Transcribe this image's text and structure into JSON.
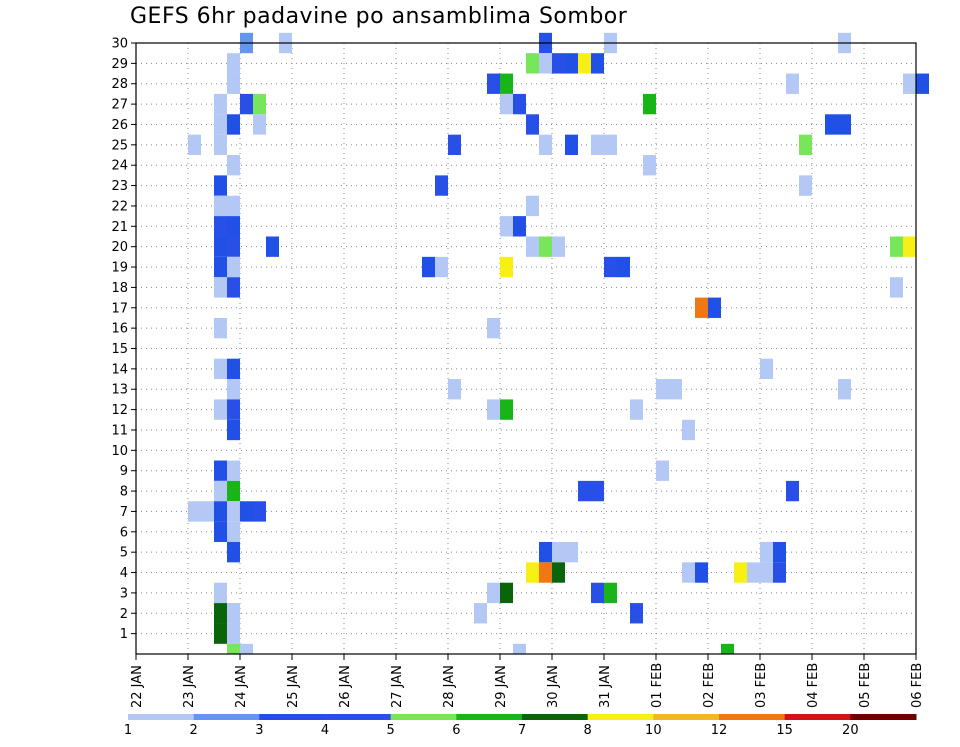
{
  "chart_data": {
    "type": "heatmap",
    "title": "GEFS 6hr padavine po ansamblima Sombor",
    "x_ticks": [
      "22 JAN",
      "23 JAN",
      "24 JAN",
      "25 JAN",
      "26 JAN",
      "27 JAN",
      "28 JAN",
      "29 JAN",
      "30 JAN",
      "31 JAN",
      "01 FEB",
      "02 FEB",
      "03 FEB",
      "04 FEB",
      "05 FEB",
      "06 FEB"
    ],
    "y_ticks": [
      1,
      2,
      3,
      4,
      5,
      6,
      7,
      8,
      9,
      10,
      11,
      12,
      13,
      14,
      15,
      16,
      17,
      18,
      19,
      20,
      21,
      22,
      23,
      24,
      25,
      26,
      27,
      28,
      29,
      30
    ],
    "x_range_days": [
      0,
      15
    ],
    "y_range": [
      0,
      30
    ],
    "grid": "dotted",
    "cell_width_days": 0.25,
    "legend": {
      "position": "bottom",
      "labels": [
        "1",
        "2",
        "3",
        "4",
        "5",
        "6",
        "7",
        "8",
        "10",
        "12",
        "15",
        "20"
      ],
      "colors": [
        "#b4c8f6",
        "#6496f0",
        "#2050e6",
        "#2850e6",
        "#78e65a",
        "#18b418",
        "#0a640a",
        "#f8f014",
        "#f8b428",
        "#f07814",
        "#d21414",
        "#6e0000"
      ]
    },
    "cells": [
      {
        "x": 2.0,
        "y": 30,
        "v": 2
      },
      {
        "x": 2.75,
        "y": 30,
        "v": 1
      },
      {
        "x": 7.75,
        "y": 30,
        "v": 4
      },
      {
        "x": 9.0,
        "y": 30,
        "v": 1
      },
      {
        "x": 13.5,
        "y": 30,
        "v": 1
      },
      {
        "x": 1.75,
        "y": 29,
        "v": 1
      },
      {
        "x": 7.5,
        "y": 29,
        "v": 5
      },
      {
        "x": 7.75,
        "y": 29,
        "v": 1
      },
      {
        "x": 8.0,
        "y": 29,
        "v": 4
      },
      {
        "x": 8.25,
        "y": 29,
        "v": 3
      },
      {
        "x": 8.5,
        "y": 29,
        "v": 8
      },
      {
        "x": 8.75,
        "y": 29,
        "v": 3
      },
      {
        "x": 1.75,
        "y": 28,
        "v": 1
      },
      {
        "x": 6.75,
        "y": 28,
        "v": 4
      },
      {
        "x": 7.0,
        "y": 28,
        "v": 6
      },
      {
        "x": 12.5,
        "y": 28,
        "v": 1
      },
      {
        "x": 14.75,
        "y": 28,
        "v": 1
      },
      {
        "x": 15.0,
        "y": 28,
        "v": 3
      },
      {
        "x": 1.5,
        "y": 27,
        "v": 1
      },
      {
        "x": 2.0,
        "y": 27,
        "v": 4
      },
      {
        "x": 2.25,
        "y": 27,
        "v": 5
      },
      {
        "x": 7.0,
        "y": 27,
        "v": 1
      },
      {
        "x": 7.25,
        "y": 27,
        "v": 4
      },
      {
        "x": 9.75,
        "y": 27,
        "v": 6
      },
      {
        "x": 1.5,
        "y": 26,
        "v": 1
      },
      {
        "x": 1.75,
        "y": 26,
        "v": 3
      },
      {
        "x": 2.25,
        "y": 26,
        "v": 1
      },
      {
        "x": 7.5,
        "y": 26,
        "v": 4
      },
      {
        "x": 13.25,
        "y": 26,
        "v": 3
      },
      {
        "x": 13.5,
        "y": 26,
        "v": 3
      },
      {
        "x": 1.0,
        "y": 25,
        "v": 1
      },
      {
        "x": 1.5,
        "y": 25,
        "v": 1
      },
      {
        "x": 6.0,
        "y": 25,
        "v": 4
      },
      {
        "x": 7.75,
        "y": 25,
        "v": 1
      },
      {
        "x": 8.25,
        "y": 25,
        "v": 3
      },
      {
        "x": 8.75,
        "y": 25,
        "v": 1
      },
      {
        "x": 9.0,
        "y": 25,
        "v": 1
      },
      {
        "x": 12.75,
        "y": 25,
        "v": 5
      },
      {
        "x": 1.75,
        "y": 24,
        "v": 1
      },
      {
        "x": 9.75,
        "y": 24,
        "v": 1
      },
      {
        "x": 1.5,
        "y": 23,
        "v": 3
      },
      {
        "x": 5.75,
        "y": 23,
        "v": 4
      },
      {
        "x": 12.75,
        "y": 23,
        "v": 1
      },
      {
        "x": 1.5,
        "y": 22,
        "v": 1
      },
      {
        "x": 1.75,
        "y": 22,
        "v": 1
      },
      {
        "x": 7.5,
        "y": 22,
        "v": 1
      },
      {
        "x": 1.5,
        "y": 21,
        "v": 4
      },
      {
        "x": 1.75,
        "y": 21,
        "v": 3
      },
      {
        "x": 7.0,
        "y": 21,
        "v": 1
      },
      {
        "x": 7.25,
        "y": 21,
        "v": 3
      },
      {
        "x": 1.5,
        "y": 20,
        "v": 3
      },
      {
        "x": 1.75,
        "y": 20,
        "v": 4
      },
      {
        "x": 2.5,
        "y": 20,
        "v": 3
      },
      {
        "x": 7.5,
        "y": 20,
        "v": 1
      },
      {
        "x": 7.75,
        "y": 20,
        "v": 5
      },
      {
        "x": 8.0,
        "y": 20,
        "v": 1
      },
      {
        "x": 14.5,
        "y": 20,
        "v": 5
      },
      {
        "x": 14.75,
        "y": 20,
        "v": 8
      },
      {
        "x": 1.5,
        "y": 19,
        "v": 3
      },
      {
        "x": 1.75,
        "y": 19,
        "v": 1
      },
      {
        "x": 5.5,
        "y": 19,
        "v": 3
      },
      {
        "x": 5.75,
        "y": 19,
        "v": 1
      },
      {
        "x": 7.0,
        "y": 19,
        "v": 8
      },
      {
        "x": 9.0,
        "y": 19,
        "v": 4
      },
      {
        "x": 9.25,
        "y": 19,
        "v": 3
      },
      {
        "x": 1.5,
        "y": 18,
        "v": 1
      },
      {
        "x": 1.75,
        "y": 18,
        "v": 4
      },
      {
        "x": 14.5,
        "y": 18,
        "v": 1
      },
      {
        "x": 10.75,
        "y": 17,
        "v": 12
      },
      {
        "x": 11.0,
        "y": 17,
        "v": 3
      },
      {
        "x": 1.5,
        "y": 16,
        "v": 1
      },
      {
        "x": 6.75,
        "y": 16,
        "v": 1
      },
      {
        "x": 1.5,
        "y": 14,
        "v": 1
      },
      {
        "x": 1.75,
        "y": 14,
        "v": 3
      },
      {
        "x": 12.0,
        "y": 14,
        "v": 1
      },
      {
        "x": 1.75,
        "y": 13,
        "v": 1
      },
      {
        "x": 6.0,
        "y": 13,
        "v": 1
      },
      {
        "x": 10.0,
        "y": 13,
        "v": 1
      },
      {
        "x": 10.25,
        "y": 13,
        "v": 1
      },
      {
        "x": 13.5,
        "y": 13,
        "v": 1
      },
      {
        "x": 1.5,
        "y": 12,
        "v": 1
      },
      {
        "x": 1.75,
        "y": 12,
        "v": 4
      },
      {
        "x": 6.75,
        "y": 12,
        "v": 1
      },
      {
        "x": 7.0,
        "y": 12,
        "v": 6
      },
      {
        "x": 9.5,
        "y": 12,
        "v": 1
      },
      {
        "x": 1.75,
        "y": 11,
        "v": 3
      },
      {
        "x": 10.5,
        "y": 11,
        "v": 1
      },
      {
        "x": 1.5,
        "y": 9,
        "v": 3
      },
      {
        "x": 1.75,
        "y": 9,
        "v": 1
      },
      {
        "x": 10.0,
        "y": 9,
        "v": 1
      },
      {
        "x": 1.5,
        "y": 8,
        "v": 1
      },
      {
        "x": 1.75,
        "y": 8,
        "v": 6
      },
      {
        "x": 8.5,
        "y": 8,
        "v": 4
      },
      {
        "x": 8.75,
        "y": 8,
        "v": 4
      },
      {
        "x": 12.5,
        "y": 8,
        "v": 4
      },
      {
        "x": 1.0,
        "y": 7,
        "v": 1
      },
      {
        "x": 1.25,
        "y": 7,
        "v": 1
      },
      {
        "x": 1.5,
        "y": 7,
        "v": 3
      },
      {
        "x": 1.75,
        "y": 7,
        "v": 1
      },
      {
        "x": 2.0,
        "y": 7,
        "v": 3
      },
      {
        "x": 2.25,
        "y": 7,
        "v": 4
      },
      {
        "x": 1.5,
        "y": 6,
        "v": 3
      },
      {
        "x": 1.75,
        "y": 6,
        "v": 1
      },
      {
        "x": 1.75,
        "y": 5,
        "v": 3
      },
      {
        "x": 7.75,
        "y": 5,
        "v": 3
      },
      {
        "x": 8.0,
        "y": 5,
        "v": 1
      },
      {
        "x": 8.25,
        "y": 5,
        "v": 1
      },
      {
        "x": 12.0,
        "y": 5,
        "v": 1
      },
      {
        "x": 12.25,
        "y": 5,
        "v": 3
      },
      {
        "x": 7.5,
        "y": 4,
        "v": 8
      },
      {
        "x": 7.75,
        "y": 4,
        "v": 12
      },
      {
        "x": 8.0,
        "y": 4,
        "v": 7
      },
      {
        "x": 10.5,
        "y": 4,
        "v": 1
      },
      {
        "x": 10.75,
        "y": 4,
        "v": 3
      },
      {
        "x": 11.5,
        "y": 4,
        "v": 8
      },
      {
        "x": 11.75,
        "y": 4,
        "v": 1
      },
      {
        "x": 12.0,
        "y": 4,
        "v": 1
      },
      {
        "x": 12.25,
        "y": 4,
        "v": 4
      },
      {
        "x": 1.5,
        "y": 3,
        "v": 1
      },
      {
        "x": 6.75,
        "y": 3,
        "v": 1
      },
      {
        "x": 7.0,
        "y": 3,
        "v": 7
      },
      {
        "x": 8.75,
        "y": 3,
        "v": 4
      },
      {
        "x": 9.0,
        "y": 3,
        "v": 6
      },
      {
        "x": 1.5,
        "y": 2,
        "v": 7
      },
      {
        "x": 1.75,
        "y": 2,
        "v": 1
      },
      {
        "x": 6.5,
        "y": 2,
        "v": 1
      },
      {
        "x": 9.5,
        "y": 2,
        "v": 4
      },
      {
        "x": 1.5,
        "y": 1,
        "v": 7
      },
      {
        "x": 1.75,
        "y": 1,
        "v": 1
      }
    ],
    "edge_marks": [
      {
        "x": 1.75,
        "y": 0,
        "v": 5
      },
      {
        "x": 2.0,
        "y": 0,
        "v": 1
      },
      {
        "x": 7.25,
        "y": 0,
        "v": 1
      },
      {
        "x": 11.25,
        "y": 0,
        "v": 6
      }
    ]
  }
}
